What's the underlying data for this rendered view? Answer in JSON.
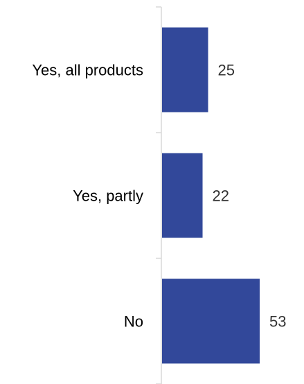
{
  "chart_data": {
    "type": "bar",
    "orientation": "horizontal",
    "categories": [
      "Yes, all products",
      "Yes, partly",
      "No"
    ],
    "values": [
      25,
      22,
      53
    ],
    "data_labels": [
      "25",
      "22",
      "53"
    ],
    "title": "",
    "xlabel": "",
    "ylabel": "",
    "xlim": [
      0,
      60
    ],
    "grid": false,
    "legend": "none",
    "bar_color": "#32489a",
    "axis_color": "#d9d9d9"
  }
}
